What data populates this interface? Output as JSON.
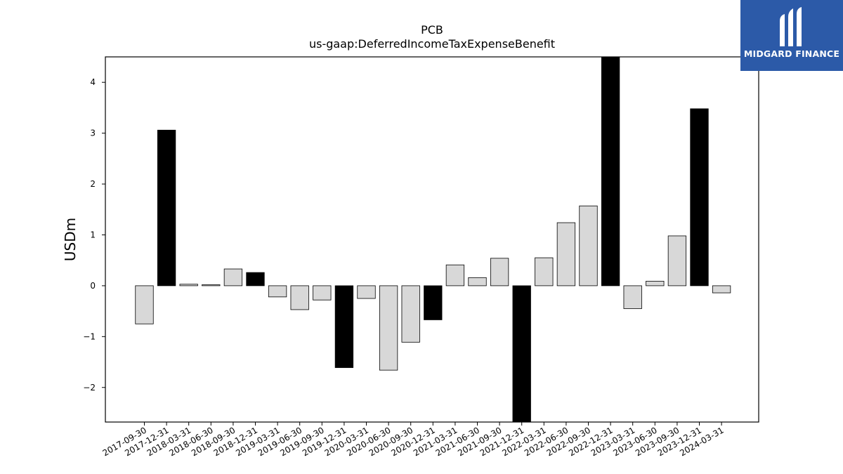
{
  "chart_data": {
    "type": "bar",
    "title": "PCB",
    "subtitle": "us-gaap:DeferredIncomeTaxExpenseBenefit",
    "xlabel": "",
    "ylabel": "USDm",
    "ylim": [
      -2.68,
      4.5
    ],
    "yticks": [
      -2,
      -1,
      0,
      1,
      2,
      3,
      4
    ],
    "grid": false,
    "categories": [
      "2017-09-30",
      "2017-12-31",
      "2018-03-31",
      "2018-06-30",
      "2018-09-30",
      "2018-12-31",
      "2019-03-31",
      "2019-06-30",
      "2019-09-30",
      "2019-12-31",
      "2020-03-31",
      "2020-06-30",
      "2020-09-30",
      "2020-12-31",
      "2021-03-31",
      "2021-06-30",
      "2021-09-30",
      "2021-12-31",
      "2022-03-31",
      "2022-06-30",
      "2022-09-30",
      "2022-12-31",
      "2023-03-31",
      "2023-06-30",
      "2023-09-30",
      "2023-12-31",
      "2024-03-31"
    ],
    "values": [
      -0.75,
      3.06,
      0.03,
      0.02,
      0.33,
      0.26,
      -0.22,
      -0.47,
      -0.28,
      -1.61,
      -0.25,
      -1.66,
      -1.11,
      -0.67,
      0.41,
      0.16,
      0.54,
      -2.68,
      0.55,
      1.24,
      1.57,
      4.5,
      -0.45,
      0.09,
      0.98,
      3.48,
      -0.14
    ],
    "highlighted": [
      false,
      true,
      false,
      false,
      false,
      true,
      false,
      false,
      false,
      true,
      false,
      false,
      false,
      true,
      false,
      false,
      false,
      true,
      false,
      false,
      false,
      true,
      false,
      false,
      false,
      true,
      false
    ],
    "colors": {
      "normal": "#d8d8d8",
      "highlight": "#000000",
      "edge": "#000000"
    }
  },
  "brand": {
    "name": "MIDGARD FINANCE",
    "background": "#2c5aa8"
  }
}
